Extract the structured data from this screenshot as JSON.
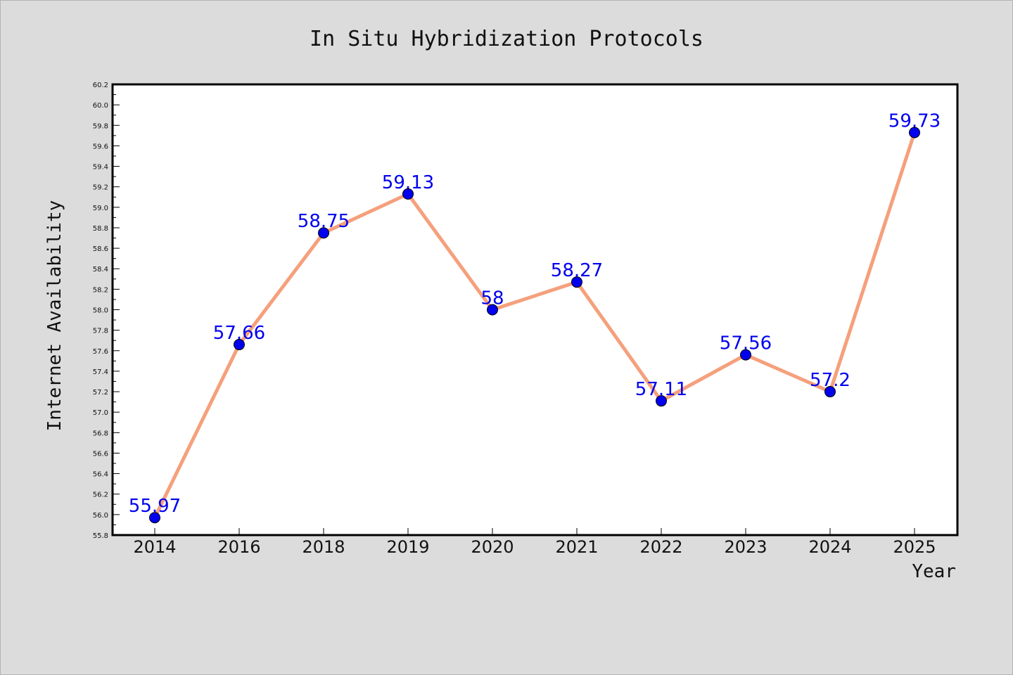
{
  "chart_data": {
    "type": "line",
    "title": "In Situ Hybridization Protocols",
    "xlabel": "Year",
    "ylabel": "Internet Availability",
    "categories": [
      "2014",
      "2016",
      "2018",
      "2019",
      "2020",
      "2021",
      "2022",
      "2023",
      "2024",
      "2025"
    ],
    "series": [
      {
        "values": [
          55.97,
          57.66,
          58.75,
          59.13,
          58,
          58.27,
          57.11,
          57.56,
          57.2,
          59.73
        ],
        "line_color": "#f5a07c",
        "marker_color": "#0000ee",
        "label_color": "#0000ee"
      }
    ],
    "data_labels": [
      "55.97",
      "57.66",
      "58.75",
      "59.13",
      "58",
      "58.27",
      "57.11",
      "57.56",
      "57.2",
      "59.73"
    ],
    "ylim": [
      55.8,
      60.2
    ],
    "yticks": [
      "55.8",
      "56.0",
      "56.2",
      "56.4",
      "56.6",
      "56.8",
      "57.0",
      "57.2",
      "57.4",
      "57.6",
      "57.8",
      "58.0",
      "58.2",
      "58.4",
      "58.6",
      "58.8",
      "59.0",
      "59.2",
      "59.4",
      "59.6",
      "59.8",
      "60.0",
      "60.2"
    ],
    "grid": false,
    "legend": "none",
    "plot_background": "#ffffff",
    "figure_background": "#dcdcdc"
  }
}
